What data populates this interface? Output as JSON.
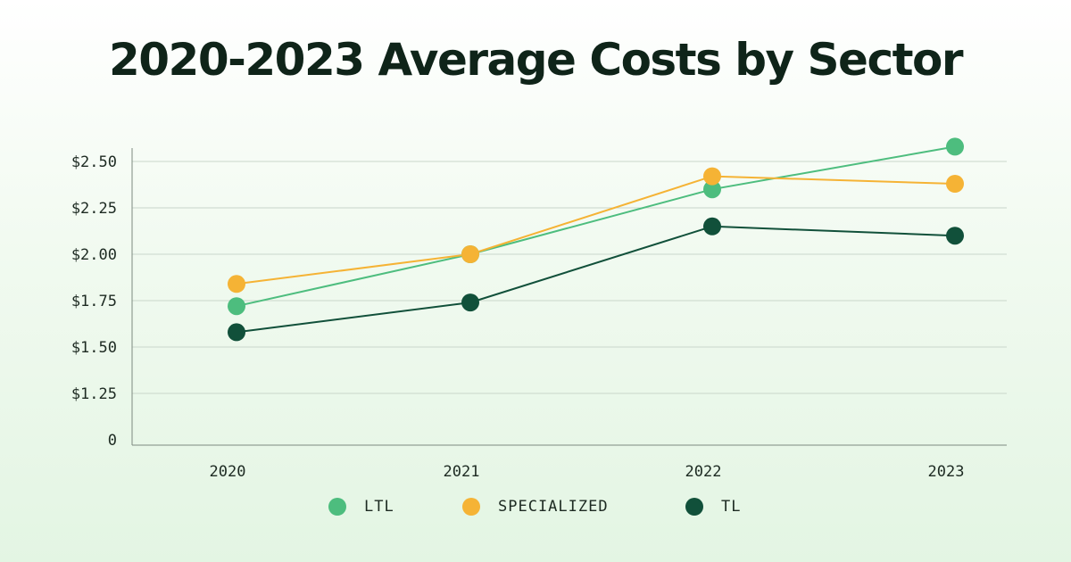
{
  "chart_data": {
    "type": "line",
    "title": "2020-2023 Average Costs by Sector",
    "categories": [
      "2020",
      "2021",
      "2022",
      "2023"
    ],
    "ytick_labels": [
      "0",
      "$1.25",
      "$1.50",
      "$1.75",
      "$2.00",
      "$2.25",
      "$2.50"
    ],
    "ytick_values": [
      1.0,
      1.25,
      1.5,
      1.75,
      2.0,
      2.25,
      2.5
    ],
    "ylim": [
      1.0,
      2.58
    ],
    "grid": true,
    "legend_position": "bottom",
    "series": [
      {
        "name": "LTL",
        "color": "#4dbd7e",
        "values": [
          1.72,
          2.0,
          2.35,
          2.58
        ]
      },
      {
        "name": "SPECIALIZED",
        "color": "#f5b335",
        "values": [
          1.84,
          2.0,
          2.42,
          2.38
        ]
      },
      {
        "name": "TL",
        "color": "#11503a",
        "values": [
          1.58,
          1.74,
          2.15,
          2.1
        ]
      }
    ]
  }
}
